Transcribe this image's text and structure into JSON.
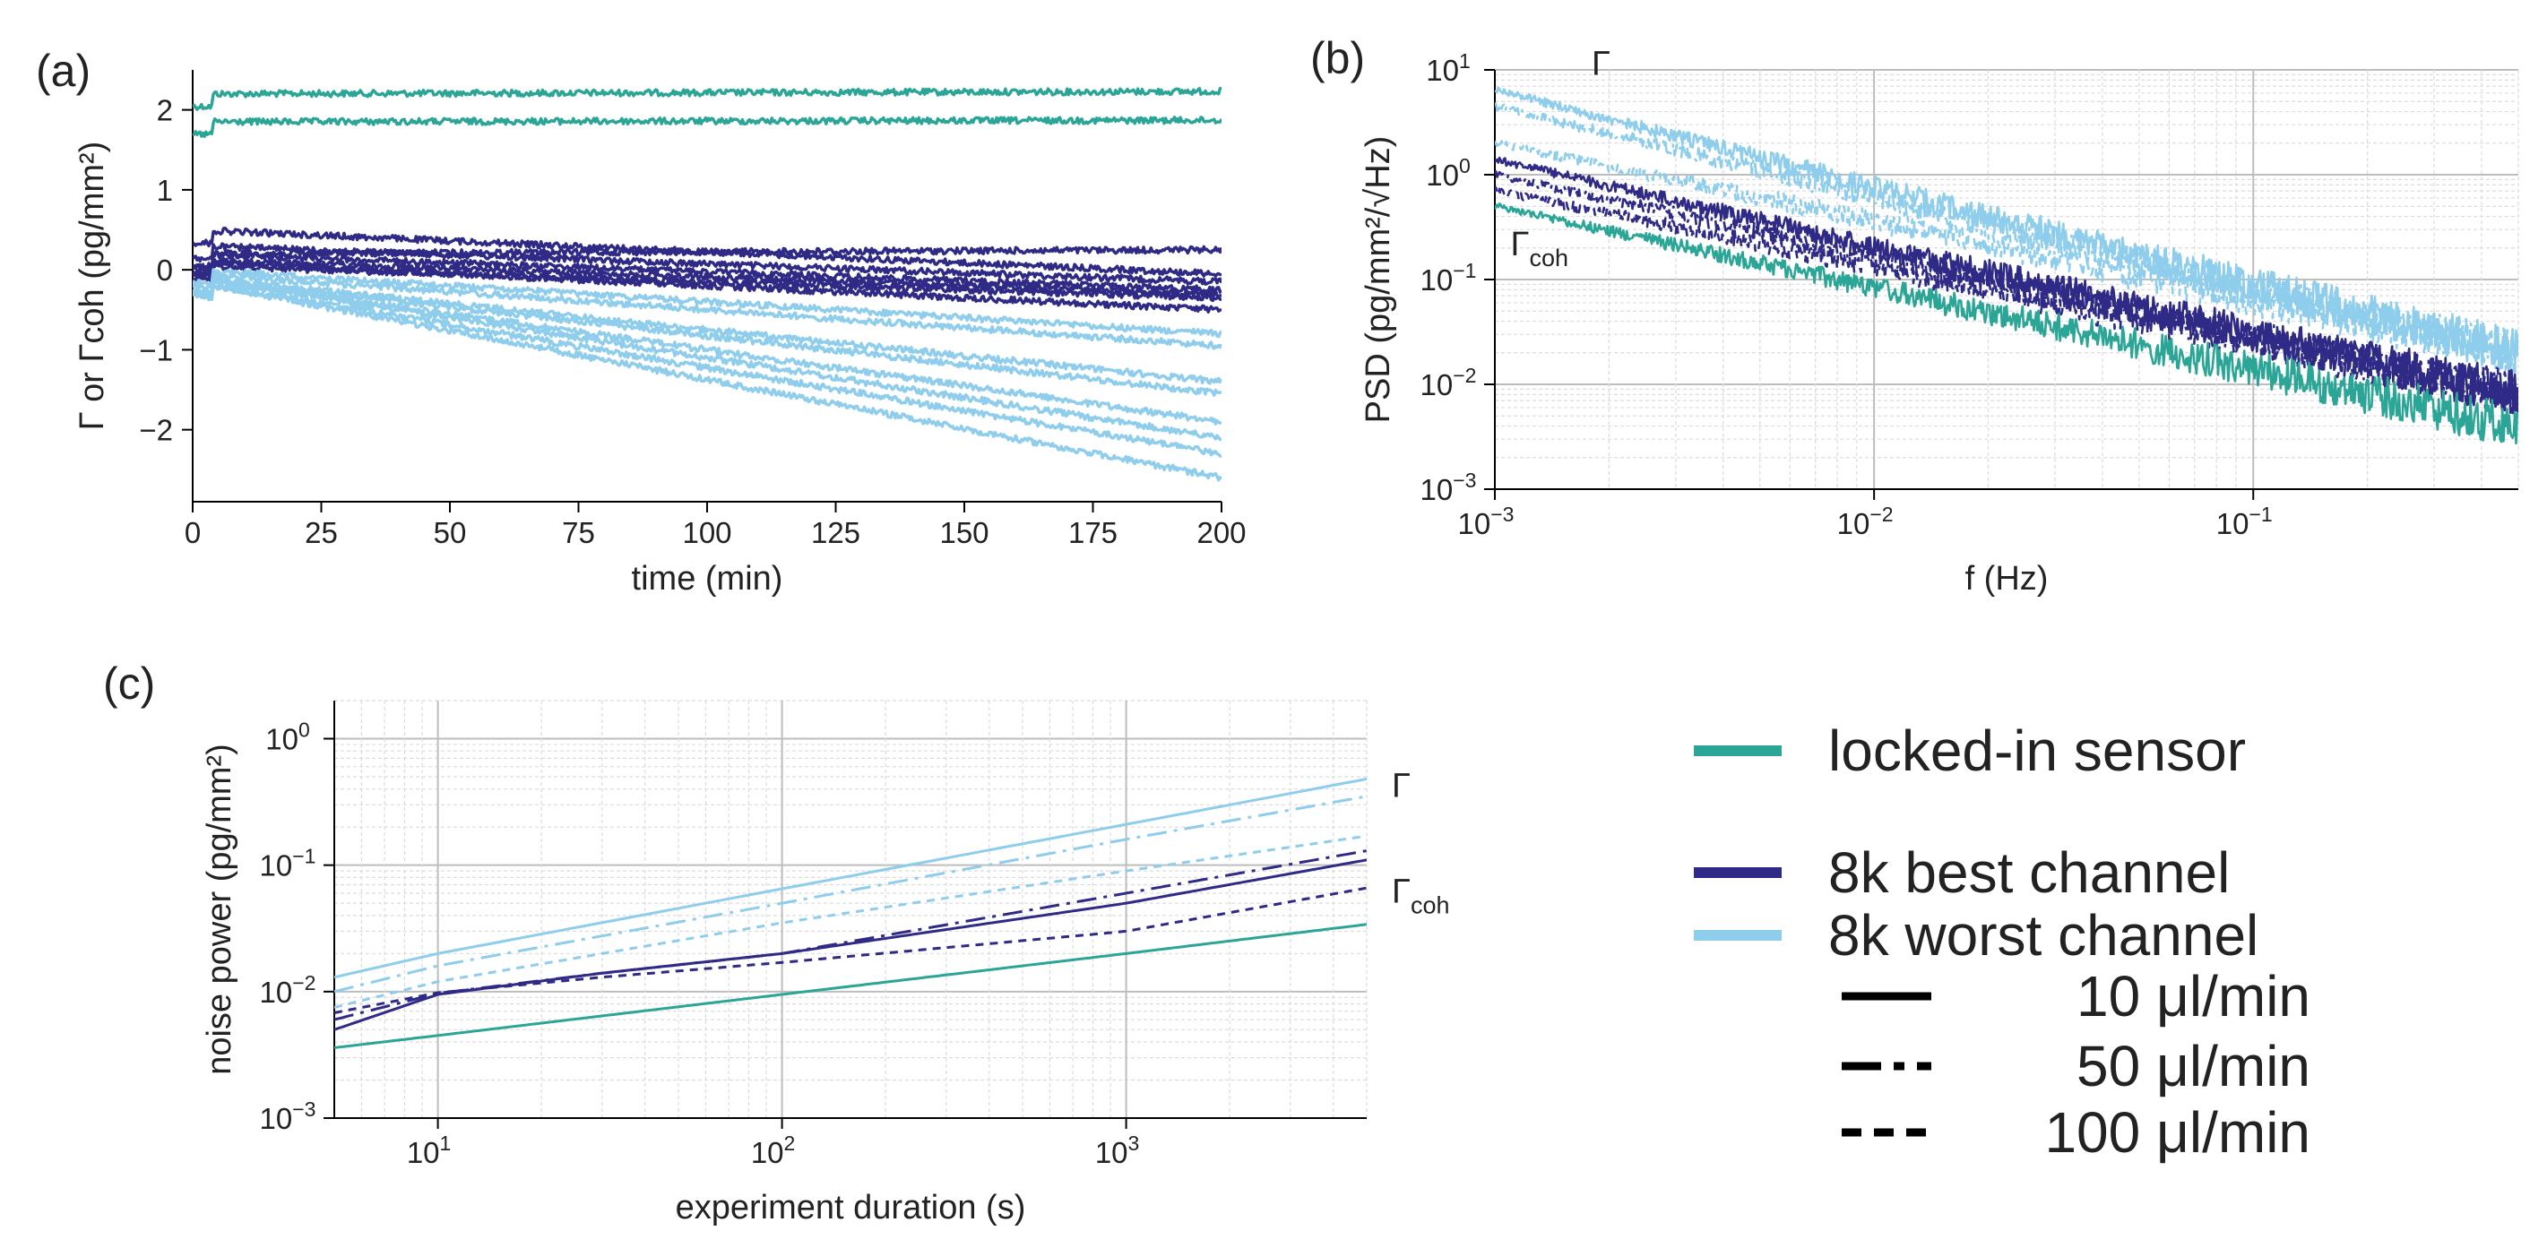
{
  "colors": {
    "locked": "#2aa596",
    "best": "#2e2a86",
    "worst": "#8ecdec",
    "legend_line": "#000000",
    "grid_major": "#bdbdbd",
    "grid_minor": "#dcdcdc"
  },
  "chart_data": [
    {
      "panel": "(a)",
      "type": "line",
      "xlabel": "time (min)",
      "ylabel": "Γ or Γcoh (pg/mm²)",
      "xlim": [
        0,
        200
      ],
      "ylim": [
        -2.9,
        2.5
      ],
      "xticks": [
        0,
        25,
        50,
        75,
        100,
        125,
        150,
        175,
        200
      ],
      "yticks": [
        -2,
        -1,
        0,
        1,
        2
      ],
      "xtick_labels": [
        "0",
        "25",
        "50",
        "75",
        "100",
        "125",
        "150",
        "175",
        "200"
      ],
      "ytick_labels": [
        "−2",
        "−1",
        "0",
        "1",
        "2"
      ],
      "grid": false,
      "series": [
        {
          "group": "locked-in sensor",
          "x": [
            0,
            200
          ],
          "y": [
            2.2,
            2.23
          ]
        },
        {
          "group": "locked-in sensor",
          "x": [
            0,
            200
          ],
          "y": [
            1.85,
            1.87
          ]
        },
        {
          "group": "8k best channel",
          "x": [
            0,
            200
          ],
          "y": [
            0.2,
            0.25
          ]
        },
        {
          "group": "8k best channel",
          "x": [
            0,
            200
          ],
          "y": [
            0.5,
            -0.05
          ]
        },
        {
          "group": "8k best channel",
          "x": [
            0,
            200
          ],
          "y": [
            0.3,
            -0.15
          ]
        },
        {
          "group": "8k best channel",
          "x": [
            0,
            200
          ],
          "y": [
            0.2,
            -0.25
          ]
        },
        {
          "group": "8k best channel",
          "x": [
            0,
            200
          ],
          "y": [
            0.12,
            -0.3
          ]
        },
        {
          "group": "8k best channel",
          "x": [
            0,
            200
          ],
          "y": [
            0.05,
            -0.35
          ]
        },
        {
          "group": "8k best channel",
          "x": [
            0,
            200
          ],
          "y": [
            0.1,
            -0.5
          ]
        },
        {
          "group": "8k worst channel",
          "x": [
            0,
            200
          ],
          "y": [
            0.0,
            -0.8
          ]
        },
        {
          "group": "8k worst channel",
          "x": [
            0,
            200
          ],
          "y": [
            -0.05,
            -0.95
          ]
        },
        {
          "group": "8k worst channel",
          "x": [
            0,
            200
          ],
          "y": [
            -0.1,
            -1.4
          ]
        },
        {
          "group": "8k worst channel",
          "x": [
            0,
            200
          ],
          "y": [
            -0.1,
            -1.55
          ]
        },
        {
          "group": "8k worst channel",
          "x": [
            0,
            200
          ],
          "y": [
            -0.1,
            -1.9
          ]
        },
        {
          "group": "8k worst channel",
          "x": [
            0,
            200
          ],
          "y": [
            -0.1,
            -2.1
          ]
        },
        {
          "group": "8k worst channel",
          "x": [
            0,
            200
          ],
          "y": [
            -0.15,
            -2.3
          ]
        },
        {
          "group": "8k worst channel",
          "x": [
            0,
            200
          ],
          "y": [
            -0.15,
            -2.6
          ]
        }
      ]
    },
    {
      "panel": "(b)",
      "type": "line",
      "xscale": "log",
      "yscale": "log",
      "xlabel": "f (Hz)",
      "ylabel": "PSD (pg/mm²/√Hz)",
      "xlim": [
        0.001,
        0.5
      ],
      "ylim": [
        0.001,
        10
      ],
      "xticks": [
        0.001,
        0.01,
        0.1
      ],
      "yticks": [
        0.001,
        0.01,
        0.1,
        1,
        10
      ],
      "tick_base": "10",
      "xtick_exponents": [
        "−3",
        "−2",
        "−1"
      ],
      "ytick_exponents": [
        "−3",
        "−2",
        "−1",
        "0",
        "1"
      ],
      "grid": true,
      "annotations": [
        {
          "text": "Γ",
          "x": 0.0018,
          "y": 9
        },
        {
          "text": "Γ",
          "sub": "coh",
          "x": 0.0011,
          "y": 0.17
        }
      ],
      "series": [
        {
          "group": "8k worst channel",
          "style": "solid",
          "x": [
            0.001,
            0.5
          ],
          "y": [
            6.5,
            0.02
          ]
        },
        {
          "group": "8k worst channel",
          "style": "dashdot",
          "x": [
            0.001,
            0.5
          ],
          "y": [
            4.5,
            0.02
          ]
        },
        {
          "group": "8k worst channel",
          "style": "dashed",
          "x": [
            0.001,
            0.5
          ],
          "y": [
            2.0,
            0.02
          ]
        },
        {
          "group": "8k best channel",
          "style": "solid",
          "x": [
            0.001,
            0.5
          ],
          "y": [
            1.4,
            0.008
          ]
        },
        {
          "group": "8k best channel",
          "style": "dashdot",
          "x": [
            0.001,
            0.5
          ],
          "y": [
            1.0,
            0.008
          ]
        },
        {
          "group": "8k best channel",
          "style": "dashed",
          "x": [
            0.001,
            0.5
          ],
          "y": [
            0.7,
            0.008
          ]
        },
        {
          "group": "locked-in sensor",
          "style": "solid",
          "x": [
            0.001,
            0.5
          ],
          "y": [
            0.5,
            0.004
          ]
        }
      ]
    },
    {
      "panel": "(c)",
      "type": "line",
      "xscale": "log",
      "yscale": "log",
      "xlabel": "experiment duration (s)",
      "ylabel": "noise power (pg/mm²)",
      "xlim": [
        5,
        5000
      ],
      "ylim": [
        0.001,
        2
      ],
      "xticks": [
        10,
        100,
        1000
      ],
      "yticks": [
        0.001,
        0.01,
        0.1,
        1
      ],
      "tick_base": "10",
      "xtick_exponents": [
        "1",
        "2",
        "3"
      ],
      "ytick_exponents": [
        "−3",
        "−2",
        "−1",
        "0"
      ],
      "grid": true,
      "annotations": [
        {
          "text": "Γ",
          "x": 5000,
          "y": 0.48
        },
        {
          "text": "Γ",
          "sub": "coh",
          "x": 5000,
          "y": 0.07
        }
      ],
      "series": [
        {
          "group": "8k worst channel",
          "style": "solid",
          "x": [
            5,
            10,
            100,
            1000,
            5000
          ],
          "y": [
            0.013,
            0.02,
            0.065,
            0.21,
            0.48
          ]
        },
        {
          "group": "8k worst channel",
          "style": "dashdot",
          "x": [
            5,
            10,
            100,
            1000,
            5000
          ],
          "y": [
            0.01,
            0.016,
            0.05,
            0.16,
            0.35
          ]
        },
        {
          "group": "8k worst channel",
          "style": "dashed",
          "x": [
            5,
            10,
            100,
            1000,
            5000
          ],
          "y": [
            0.0075,
            0.012,
            0.035,
            0.09,
            0.17
          ]
        },
        {
          "group": "8k best channel",
          "style": "solid",
          "x": [
            5,
            10,
            30,
            100,
            1000,
            5000
          ],
          "y": [
            0.005,
            0.0095,
            0.014,
            0.02,
            0.05,
            0.11
          ]
        },
        {
          "group": "8k best channel",
          "style": "dashdot",
          "x": [
            5,
            10,
            30,
            100,
            1000,
            5000
          ],
          "y": [
            0.006,
            0.0097,
            0.014,
            0.02,
            0.06,
            0.13
          ]
        },
        {
          "group": "8k best channel",
          "style": "dashed",
          "x": [
            5,
            10,
            30,
            100,
            1000,
            5000
          ],
          "y": [
            0.0068,
            0.0098,
            0.013,
            0.017,
            0.03,
            0.066
          ]
        },
        {
          "group": "locked-in sensor",
          "style": "solid",
          "x": [
            5,
            10,
            100,
            1000,
            5000
          ],
          "y": [
            0.0036,
            0.0045,
            0.0095,
            0.02,
            0.034
          ]
        }
      ]
    }
  ],
  "legend": {
    "placement": "bottom-right",
    "groups": [
      {
        "label": "locked-in sensor",
        "color": "locked"
      },
      {
        "label": "8k best channel",
        "color": "best"
      },
      {
        "label": "8k worst channel",
        "color": "worst"
      }
    ],
    "styles": [
      {
        "label": "10 μl/min",
        "style": "solid"
      },
      {
        "label": "50 μl/min",
        "style": "dashdot"
      },
      {
        "label": "100 μl/min",
        "style": "dashed"
      }
    ]
  }
}
